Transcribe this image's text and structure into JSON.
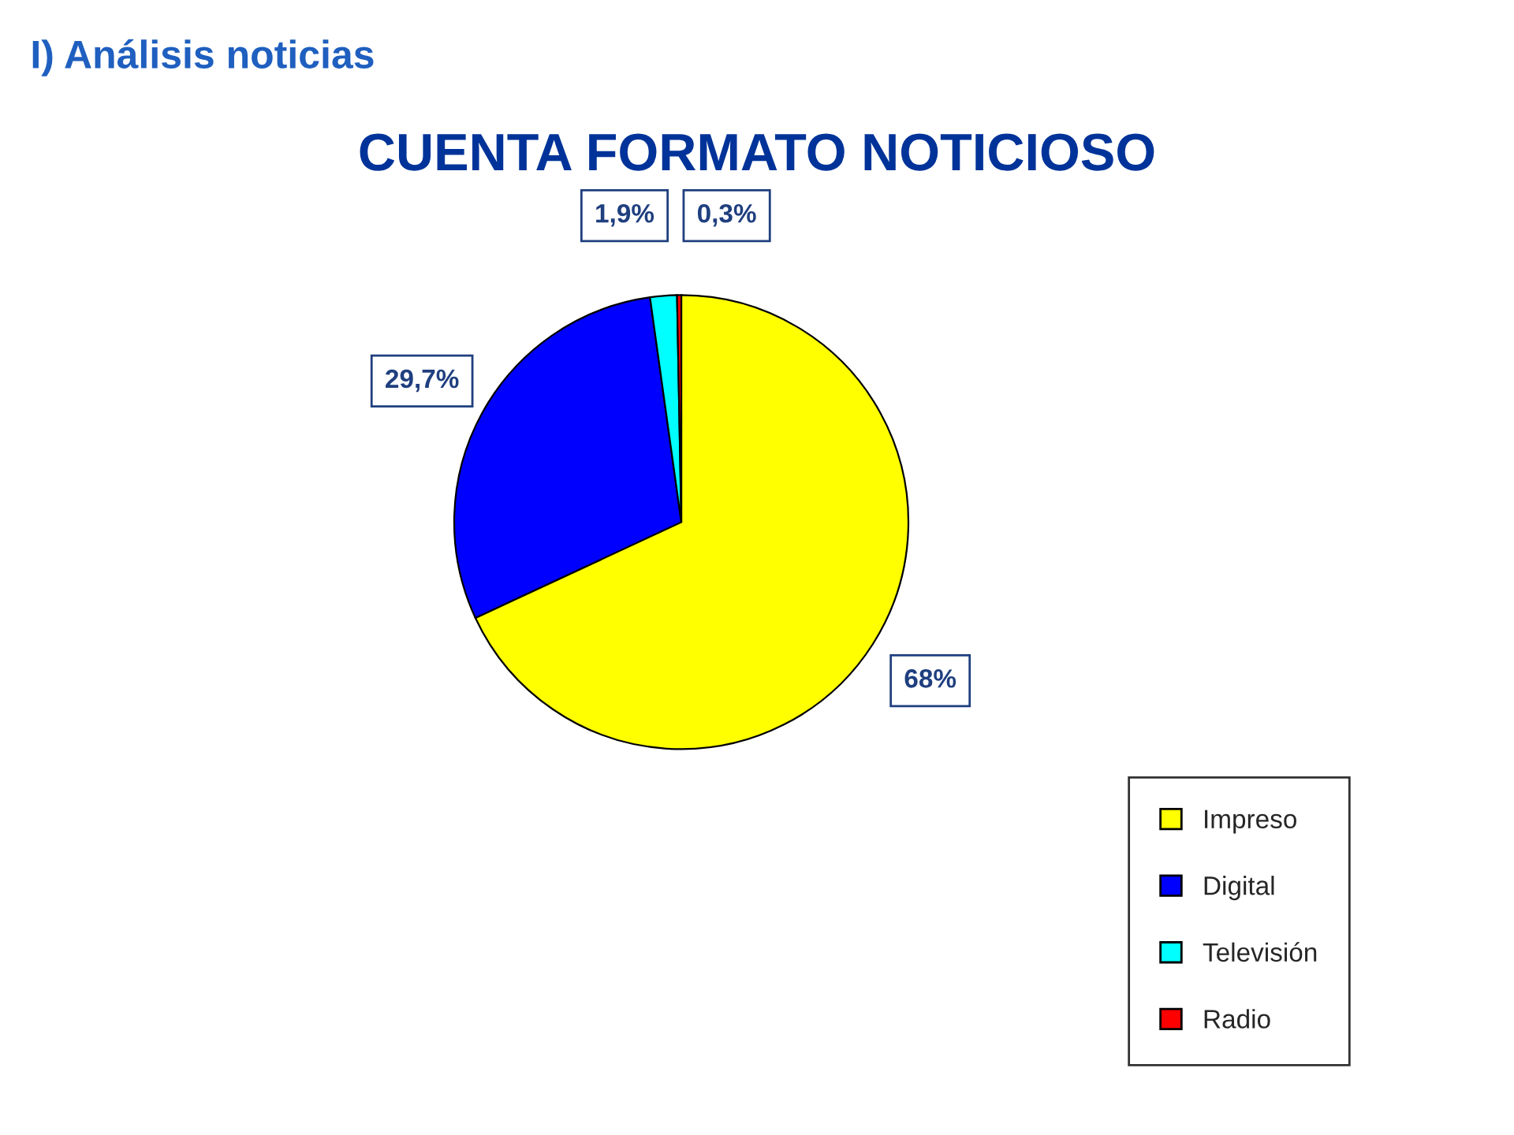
{
  "chart_data": {
    "type": "pie",
    "title": "CUENTA FORMATO NOTICIOSO",
    "annotations": [
      "I) Análisis noticias"
    ],
    "categories": [
      "Impreso",
      "Digital",
      "Televisión",
      "Radio"
    ],
    "values": [
      68,
      29.7,
      1.9,
      0.3
    ],
    "colors": [
      "#ffff00",
      "#0000ff",
      "#00ffff",
      "#ff0000"
    ],
    "value_labels": [
      "68%",
      "29,7%",
      "1,9%",
      "0,3%"
    ],
    "legend": "bottom right"
  }
}
